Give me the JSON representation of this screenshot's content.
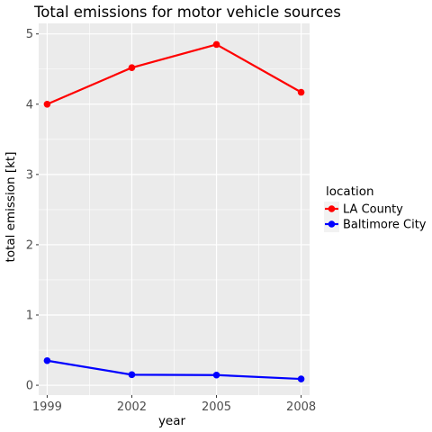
{
  "chart_data": {
    "type": "line",
    "title": "Total emissions for motor vehicle sources",
    "xlabel": "year",
    "ylabel": "total emission [kt]",
    "x": [
      1999,
      2002,
      2005,
      2008
    ],
    "x_ticks": [
      "1999",
      "2002",
      "2005",
      "2008"
    ],
    "y_ticks": [
      "0",
      "1",
      "2",
      "3",
      "4",
      "5"
    ],
    "xlim": [
      1998.7,
      2008.3
    ],
    "ylim": [
      -0.14,
      5.15
    ],
    "grid": true,
    "legend_position": "right",
    "legend_title": "location",
    "series": [
      {
        "name": "LA County",
        "color": "#ff0000",
        "values": [
          4.0,
          4.52,
          4.85,
          4.17
        ]
      },
      {
        "name": "Baltimore City",
        "color": "#0000ff",
        "values": [
          0.35,
          0.15,
          0.145,
          0.09
        ]
      }
    ],
    "panel_color": "#ebebeb",
    "grid_color": "#ffffff"
  }
}
